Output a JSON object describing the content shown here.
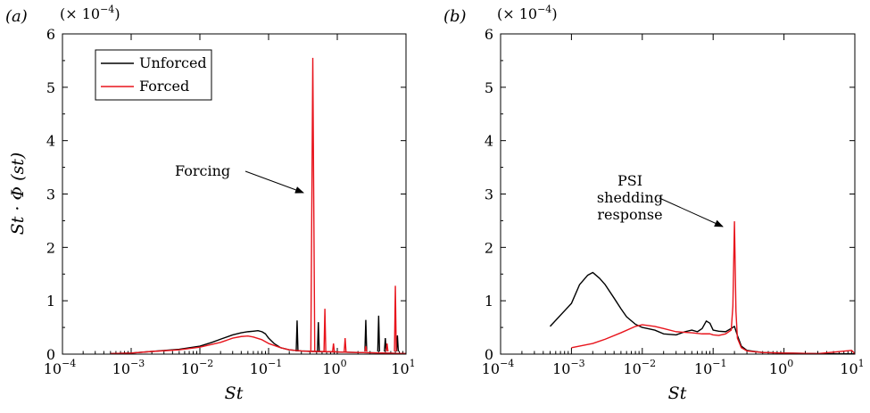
{
  "chart_data": [
    {
      "type": "line",
      "panel_label": "(a)",
      "exponent_label": "(× 10",
      "exponent_power": "−4",
      "exponent_close": ")",
      "xlabel": "St",
      "ylabel": "St · Φ (st)",
      "xscale": "log",
      "xlim": [
        0.0001,
        10
      ],
      "ylim": [
        0,
        6
      ],
      "x_ticks": [
        {
          "base": "10",
          "exp": "−4",
          "value": 0.0001
        },
        {
          "base": "10",
          "exp": "−3",
          "value": 0.001
        },
        {
          "base": "10",
          "exp": "−2",
          "value": 0.01
        },
        {
          "base": "10",
          "exp": "−1",
          "value": 0.1
        },
        {
          "base": "10",
          "exp": "0",
          "value": 1
        },
        {
          "base": "10",
          "exp": "1",
          "value": 10
        }
      ],
      "y_ticks": [
        "0",
        "1",
        "2",
        "3",
        "4",
        "5",
        "6"
      ],
      "legend": {
        "position": "top-left",
        "items": [
          "Unforced",
          "Forced"
        ]
      },
      "annotations": [
        {
          "text": "Forcing",
          "target": [
            0.44,
            3.0
          ]
        }
      ],
      "series": [
        {
          "name": "Unforced",
          "color": "#000000",
          "points": [
            [
              0.0005,
              0.01
            ],
            [
              0.001,
              0.02
            ],
            [
              0.002,
              0.05
            ],
            [
              0.005,
              0.09
            ],
            [
              0.01,
              0.15
            ],
            [
              0.015,
              0.22
            ],
            [
              0.02,
              0.28
            ],
            [
              0.03,
              0.36
            ],
            [
              0.04,
              0.4
            ],
            [
              0.05,
              0.42
            ],
            [
              0.06,
              0.43
            ],
            [
              0.07,
              0.44
            ],
            [
              0.08,
              0.42
            ],
            [
              0.09,
              0.38
            ],
            [
              0.1,
              0.3
            ],
            [
              0.12,
              0.2
            ],
            [
              0.15,
              0.12
            ],
            [
              0.2,
              0.08
            ],
            [
              0.3,
              0.06
            ],
            [
              0.5,
              0.05
            ],
            [
              1,
              0.04
            ],
            [
              2,
              0.03
            ],
            [
              5,
              0.02
            ],
            [
              10,
              0.01
            ]
          ],
          "spikes": [
            [
              0.26,
              0.63
            ],
            [
              0.53,
              0.6
            ],
            [
              2.6,
              0.64
            ],
            [
              4.0,
              0.72
            ],
            [
              5.0,
              0.3
            ],
            [
              7.5,
              0.35
            ]
          ]
        },
        {
          "name": "Forced",
          "color": "#e8141c",
          "points": [
            [
              0.0005,
              0.01
            ],
            [
              0.001,
              0.02
            ],
            [
              0.002,
              0.05
            ],
            [
              0.005,
              0.08
            ],
            [
              0.01,
              0.13
            ],
            [
              0.02,
              0.22
            ],
            [
              0.03,
              0.3
            ],
            [
              0.04,
              0.33
            ],
            [
              0.05,
              0.34
            ],
            [
              0.06,
              0.32
            ],
            [
              0.08,
              0.27
            ],
            [
              0.1,
              0.2
            ],
            [
              0.15,
              0.12
            ],
            [
              0.2,
              0.08
            ],
            [
              0.3,
              0.06
            ],
            [
              0.4,
              0.05
            ],
            [
              0.5,
              0.05
            ],
            [
              1,
              0.04
            ],
            [
              2,
              0.03
            ],
            [
              5,
              0.02
            ],
            [
              10,
              0.01
            ]
          ],
          "spikes": [
            [
              0.44,
              5.55
            ],
            [
              0.66,
              0.85
            ],
            [
              0.88,
              0.2
            ],
            [
              1.3,
              0.3
            ],
            [
              2.6,
              0.15
            ],
            [
              5.3,
              0.2
            ],
            [
              7.0,
              1.28
            ]
          ]
        }
      ]
    },
    {
      "type": "line",
      "panel_label": "(b)",
      "exponent_label": "(× 10",
      "exponent_power": "−4",
      "exponent_close": ")",
      "xlabel": "St",
      "xscale": "log",
      "xlim": [
        0.0001,
        10
      ],
      "ylim": [
        0,
        6
      ],
      "x_ticks": [
        {
          "base": "10",
          "exp": "−4",
          "value": 0.0001
        },
        {
          "base": "10",
          "exp": "−3",
          "value": 0.001
        },
        {
          "base": "10",
          "exp": "−2",
          "value": 0.01
        },
        {
          "base": "10",
          "exp": "−1",
          "value": 0.1
        },
        {
          "base": "10",
          "exp": "0",
          "value": 1
        },
        {
          "base": "10",
          "exp": "1",
          "value": 10
        }
      ],
      "y_ticks": [
        "0",
        "1",
        "2",
        "3",
        "4",
        "5",
        "6"
      ],
      "annotations": [
        {
          "lines": [
            "PSI",
            "shedding",
            "response"
          ],
          "target": [
            0.2,
            2.35
          ]
        }
      ],
      "series": [
        {
          "name": "Unforced",
          "color": "#000000",
          "points": [
            [
              0.0005,
              0.52
            ],
            [
              0.001,
              0.95
            ],
            [
              0.0013,
              1.3
            ],
            [
              0.0017,
              1.48
            ],
            [
              0.002,
              1.53
            ],
            [
              0.0025,
              1.42
            ],
            [
              0.003,
              1.3
            ],
            [
              0.004,
              1.05
            ],
            [
              0.005,
              0.85
            ],
            [
              0.006,
              0.7
            ],
            [
              0.008,
              0.56
            ],
            [
              0.01,
              0.5
            ],
            [
              0.015,
              0.45
            ],
            [
              0.02,
              0.38
            ],
            [
              0.03,
              0.36
            ],
            [
              0.04,
              0.42
            ],
            [
              0.05,
              0.45
            ],
            [
              0.06,
              0.42
            ],
            [
              0.07,
              0.48
            ],
            [
              0.08,
              0.62
            ],
            [
              0.09,
              0.58
            ],
            [
              0.1,
              0.45
            ],
            [
              0.12,
              0.43
            ],
            [
              0.15,
              0.42
            ],
            [
              0.18,
              0.48
            ],
            [
              0.2,
              0.52
            ],
            [
              0.22,
              0.35
            ],
            [
              0.25,
              0.15
            ],
            [
              0.3,
              0.07
            ],
            [
              0.5,
              0.03
            ],
            [
              1,
              0.02
            ],
            [
              3,
              0.01
            ],
            [
              10,
              0.005
            ]
          ],
          "spikes": []
        },
        {
          "name": "Forced",
          "color": "#e8141c",
          "points": [
            [
              0.001,
              0.12
            ],
            [
              0.002,
              0.2
            ],
            [
              0.003,
              0.28
            ],
            [
              0.005,
              0.4
            ],
            [
              0.008,
              0.52
            ],
            [
              0.01,
              0.55
            ],
            [
              0.015,
              0.52
            ],
            [
              0.02,
              0.48
            ],
            [
              0.03,
              0.42
            ],
            [
              0.05,
              0.4
            ],
            [
              0.07,
              0.38
            ],
            [
              0.09,
              0.38
            ],
            [
              0.1,
              0.36
            ],
            [
              0.12,
              0.35
            ],
            [
              0.15,
              0.38
            ],
            [
              0.18,
              0.45
            ],
            [
              0.19,
              0.9
            ],
            [
              0.2,
              2.48
            ],
            [
              0.21,
              0.8
            ],
            [
              0.22,
              0.3
            ],
            [
              0.25,
              0.12
            ],
            [
              0.3,
              0.06
            ],
            [
              0.5,
              0.03
            ],
            [
              1,
              0.02
            ],
            [
              3,
              0.01
            ],
            [
              9,
              0.07
            ],
            [
              10,
              0.01
            ]
          ],
          "spikes": []
        }
      ]
    }
  ]
}
